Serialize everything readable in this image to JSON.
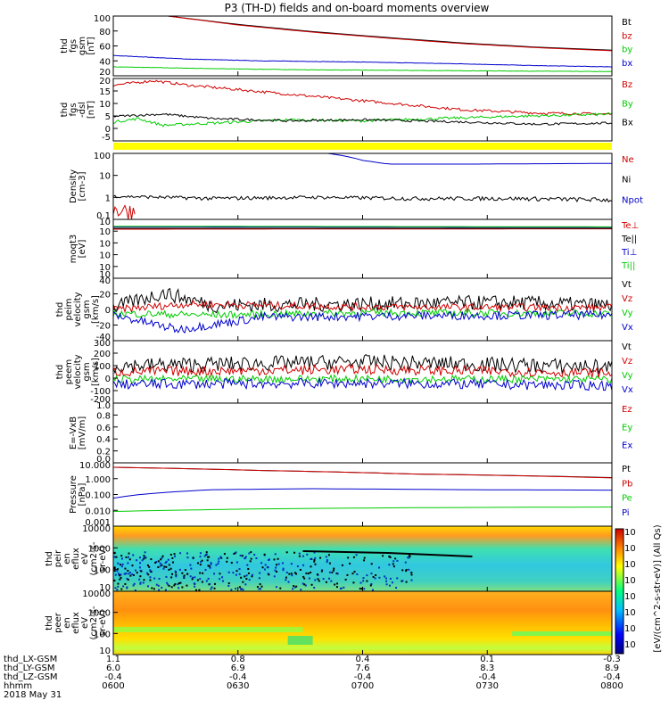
{
  "title": "P3 (TH-D) fields and on-board moments overview",
  "colors": {
    "black": "#000000",
    "red": "#d00000",
    "green": "#00cc00",
    "blue": "#0000cc",
    "yellow": "#ffff00"
  },
  "chart_data": [
    {
      "type": "line",
      "ylabel": [
        "thd",
        "fgs",
        "gsm",
        "[nT]"
      ],
      "yticks": [
        "100",
        "80",
        "60",
        "40",
        "20"
      ],
      "ylim": [
        0,
        100
      ],
      "series": [
        {
          "name": "Bt",
          "color": "black",
          "values": [
            [
              0.11,
              100
            ],
            [
              0.25,
              86
            ],
            [
              0.4,
              74
            ],
            [
              0.55,
              64
            ],
            [
              0.7,
              55
            ],
            [
              0.85,
              48
            ],
            [
              1,
              43
            ]
          ]
        },
        {
          "name": "bz",
          "color": "red",
          "values": [
            [
              0.11,
              100
            ],
            [
              0.25,
              85
            ],
            [
              0.4,
              73
            ],
            [
              0.55,
              63
            ],
            [
              0.7,
              54
            ],
            [
              0.85,
              47
            ],
            [
              1,
              42
            ]
          ]
        },
        {
          "name": "by",
          "color": "green",
          "values": [
            [
              0,
              15
            ],
            [
              0.2,
              12
            ],
            [
              0.4,
              10
            ],
            [
              0.6,
              9
            ],
            [
              0.8,
              8
            ],
            [
              1,
              7
            ]
          ]
        },
        {
          "name": "bx",
          "color": "blue",
          "values": [
            [
              0,
              34
            ],
            [
              0.15,
              28
            ],
            [
              0.3,
              25
            ],
            [
              0.5,
              23
            ],
            [
              0.7,
              20
            ],
            [
              0.85,
              17
            ],
            [
              1,
              15
            ]
          ]
        }
      ]
    },
    {
      "type": "line",
      "ylabel": [
        "thd",
        "fgs",
        "-dsl",
        "[nT]"
      ],
      "yticks": [
        "20",
        "15",
        "10",
        "5",
        "0",
        "-5"
      ],
      "ylim": [
        -8,
        20
      ],
      "series": [
        {
          "name": "Bz",
          "color": "red",
          "values": [
            [
              0,
              17
            ],
            [
              0.08,
              19
            ],
            [
              0.15,
              17
            ],
            [
              0.3,
              14
            ],
            [
              0.45,
              11
            ],
            [
              0.55,
              9
            ],
            [
              0.7,
              6
            ],
            [
              0.85,
              4.5
            ],
            [
              1,
              4
            ]
          ]
        },
        {
          "name": "By",
          "color": "green",
          "values": [
            [
              0,
              0.5
            ],
            [
              0.05,
              2
            ],
            [
              0.1,
              -1
            ],
            [
              0.2,
              0
            ],
            [
              0.35,
              1.5
            ],
            [
              0.5,
              1
            ],
            [
              0.65,
              2
            ],
            [
              0.8,
              3
            ],
            [
              1,
              4
            ]
          ]
        },
        {
          "name": "Bx",
          "color": "black",
          "values": [
            [
              0,
              3
            ],
            [
              0.1,
              4
            ],
            [
              0.2,
              2
            ],
            [
              0.35,
              1
            ],
            [
              0.5,
              1.5
            ],
            [
              0.7,
              0.5
            ],
            [
              0.85,
              -0.5
            ],
            [
              1,
              0
            ]
          ]
        }
      ]
    },
    {
      "type": "line",
      "ylabel": [
        "Density",
        "[cm-3]"
      ],
      "yticks": [
        "100",
        "10",
        "1",
        "0.1"
      ],
      "log": true,
      "ylim": [
        0.04,
        200
      ],
      "series": [
        {
          "name": "Ne",
          "color": "red",
          "values": [
            [
              0,
              0.15
            ],
            [
              0.2,
              0.12
            ],
            [
              0.4,
              0.14
            ],
            [
              0.5,
              0.3
            ],
            [
              0.7,
              0.2
            ],
            [
              1,
              0.15
            ]
          ]
        },
        {
          "name": "Ni",
          "color": "black",
          "values": [
            [
              0,
              0.8
            ],
            [
              0.2,
              0.6
            ],
            [
              0.4,
              0.7
            ],
            [
              0.6,
              0.6
            ],
            [
              0.8,
              0.6
            ],
            [
              1,
              0.5
            ]
          ]
        },
        {
          "name": "Npot",
          "color": "blue",
          "values": [
            [
              0.43,
              200
            ],
            [
              0.5,
              80
            ],
            [
              0.55,
              50
            ],
            [
              0.7,
              50
            ],
            [
              1,
              55
            ]
          ]
        }
      ]
    },
    {
      "type": "line",
      "ylabel": [
        "moqt3",
        "[eV]"
      ],
      "yticks": [
        "10",
        "10",
        "10",
        "10",
        "10",
        "10"
      ],
      "log": true,
      "ylim": [
        1e-06,
        1000000.0
      ],
      "series": [
        {
          "name": "Te⊥",
          "color": "red",
          "values": [
            [
              0,
              10000
            ],
            [
              1,
              12000
            ]
          ]
        },
        {
          "name": "Te||",
          "color": "black",
          "values": [
            [
              0,
              15000
            ],
            [
              1,
              15000
            ]
          ]
        },
        {
          "name": "Ti⊥",
          "color": "blue",
          "values": [
            [
              0,
              30000
            ],
            [
              1,
              25000
            ]
          ]
        },
        {
          "name": "Ti||",
          "color": "green",
          "values": [
            [
              0,
              40000
            ],
            [
              1,
              30000
            ]
          ]
        }
      ]
    },
    {
      "type": "line",
      "ylabel": [
        "thd",
        "peim",
        "velocity",
        "gsm",
        "[km/s]"
      ],
      "yticks": [
        "40",
        "20",
        "0",
        "-20",
        "-40"
      ],
      "ylim": [
        -40,
        45
      ],
      "series": [
        {
          "name": "Vt",
          "color": "black",
          "values": [
            [
              0,
              5
            ],
            [
              0.1,
              25
            ],
            [
              0.2,
              8
            ],
            [
              0.5,
              10
            ],
            [
              0.8,
              12
            ],
            [
              1,
              8
            ]
          ]
        },
        {
          "name": "Vz",
          "color": "red",
          "values": [
            [
              0,
              2
            ],
            [
              0.15,
              10
            ],
            [
              0.5,
              6
            ],
            [
              1,
              5
            ]
          ]
        },
        {
          "name": "Vy",
          "color": "green",
          "values": [
            [
              0,
              -3
            ],
            [
              0.2,
              -5
            ],
            [
              0.5,
              -2
            ],
            [
              1,
              -3
            ]
          ]
        },
        {
          "name": "Vx",
          "color": "blue",
          "values": [
            [
              0,
              -5
            ],
            [
              0.13,
              -25
            ],
            [
              0.3,
              -8
            ],
            [
              0.6,
              -6
            ],
            [
              1,
              -5
            ]
          ]
        }
      ]
    },
    {
      "type": "line",
      "ylabel": [
        "thd",
        "peem",
        "velocity",
        "gsm",
        "[km/s]"
      ],
      "yticks": [
        "300",
        "200",
        "100",
        "0",
        "-100",
        "-200"
      ],
      "ylim": [
        -200,
        300
      ],
      "series": [
        {
          "name": "Vt",
          "color": "black",
          "values": [
            [
              0,
              100
            ],
            [
              0.5,
              130
            ],
            [
              1,
              90
            ]
          ]
        },
        {
          "name": "Vz",
          "color": "red",
          "values": [
            [
              0,
              50
            ],
            [
              0.5,
              70
            ],
            [
              1,
              40
            ]
          ]
        },
        {
          "name": "Vy",
          "color": "green",
          "values": [
            [
              0,
              -10
            ],
            [
              0.5,
              -5
            ],
            [
              1,
              -10
            ]
          ]
        },
        {
          "name": "Vx",
          "color": "blue",
          "values": [
            [
              0,
              -50
            ],
            [
              0.5,
              -40
            ],
            [
              1,
              -60
            ]
          ]
        }
      ]
    },
    {
      "type": "line",
      "ylabel": [
        "E=-VxB",
        "[mV/m]"
      ],
      "yticks": [
        "1.0",
        "0.8",
        "0.6",
        "0.4",
        "0.2",
        "0.0"
      ],
      "ylim": [
        0,
        1
      ],
      "series": [
        {
          "name": "Ez",
          "color": "red",
          "values": []
        },
        {
          "name": "Ey",
          "color": "green",
          "values": []
        },
        {
          "name": "Ex",
          "color": "blue",
          "values": []
        }
      ]
    },
    {
      "type": "line",
      "ylabel": [
        "Pressure",
        "[nPa]"
      ],
      "yticks": [
        "10.000",
        "1.000",
        "0.100",
        "0.010",
        "0.001"
      ],
      "log": true,
      "ylim": [
        0.001,
        20
      ],
      "series": [
        {
          "name": "Pt",
          "color": "black",
          "values": [
            [
              0,
              10
            ],
            [
              0.3,
              6
            ],
            [
              0.6,
              3.5
            ],
            [
              1,
              2
            ]
          ]
        },
        {
          "name": "Pb",
          "color": "red",
          "values": [
            [
              0,
              10
            ],
            [
              0.3,
              6
            ],
            [
              0.6,
              3.5
            ],
            [
              1,
              1.9
            ]
          ]
        },
        {
          "name": "Pe",
          "color": "green",
          "values": [
            [
              0,
              0.01
            ],
            [
              0.3,
              0.015
            ],
            [
              0.6,
              0.018
            ],
            [
              1,
              0.02
            ]
          ]
        },
        {
          "name": "Pi",
          "color": "blue",
          "values": [
            [
              0,
              0.08
            ],
            [
              0.2,
              0.3
            ],
            [
              0.4,
              0.35
            ],
            [
              0.7,
              0.3
            ],
            [
              1,
              0.28
            ]
          ]
        }
      ]
    },
    {
      "type": "heatmap",
      "ylabel": [
        "thd",
        "peir",
        "en",
        "eflux",
        "eV",
        "(cm2-s-",
        "sr-eV)"
      ],
      "yticks": [
        "10000",
        "1000",
        "100",
        "10"
      ]
    },
    {
      "type": "heatmap",
      "ylabel": [
        "thd",
        "peer",
        "en",
        "eflux",
        "eV",
        "(cm2-s-",
        "sr-eV)"
      ],
      "yticks": [
        "10000",
        "1000",
        "100",
        "10"
      ]
    }
  ],
  "colorbar": {
    "label": "[eV/(cm^2-s-str-eV)] (All Qs)",
    "ticks": [
      "10",
      "10",
      "10",
      "10",
      "10",
      "10",
      "10",
      "10"
    ]
  },
  "xaxis": {
    "rows": [
      {
        "label": "thd_LX-GSM",
        "values": [
          "1.1",
          "0.8",
          "0.4",
          "0.1",
          "-0.3"
        ]
      },
      {
        "label": "thd_LY-GSM",
        "values": [
          "6.0",
          "6.9",
          "7.6",
          "8.3",
          "8.9"
        ]
      },
      {
        "label": "thd_LZ-GSM",
        "values": [
          "-0.4",
          "-0.4",
          "-0.4",
          "-0.4",
          "-0.4"
        ]
      },
      {
        "label": "hhmm",
        "values": [
          "0600",
          "0630",
          "0700",
          "0730",
          "0800"
        ]
      }
    ],
    "date": "2018 May 31"
  }
}
